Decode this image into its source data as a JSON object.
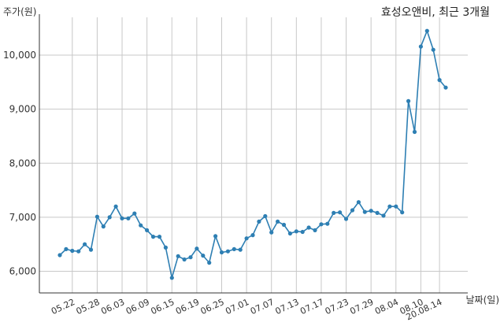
{
  "chart_data": {
    "type": "line",
    "title": "효성오앤비, 최근 3개월",
    "ylabel": "주가(원)",
    "xlabel": "날짜(일)",
    "ylim": [
      5600,
      10700
    ],
    "yticks": [
      6000,
      7000,
      8000,
      9000,
      10000
    ],
    "ytick_labels": [
      "6,000",
      "7,000",
      "8,000",
      "9,000",
      "10,000"
    ],
    "xtick_labels": [
      "05.22",
      "05.28",
      "06.03",
      "06.09",
      "06.15",
      "06.19",
      "06.25",
      "07.01",
      "07.07",
      "07.13",
      "07.17",
      "07.23",
      "07.29",
      "08.04",
      "08.10",
      "20.08.14"
    ],
    "xtick_index": [
      2,
      6,
      10,
      14,
      18,
      22,
      26,
      30,
      34,
      38,
      42,
      46,
      50,
      54,
      58,
      61
    ],
    "grid": true,
    "line_color": "#2e7fb3",
    "series": [
      {
        "values": [
          6300,
          6410,
          6380,
          6370,
          6500,
          6400,
          7010,
          6830,
          7000,
          7200,
          6980,
          6980,
          7070,
          6850,
          6760,
          6640,
          6640,
          6440,
          5880,
          6280,
          6220,
          6260,
          6420,
          6290,
          6160,
          6650,
          6350,
          6370,
          6410,
          6400,
          6610,
          6670,
          6920,
          7020,
          6720,
          6920,
          6860,
          6700,
          6740,
          6730,
          6810,
          6760,
          6870,
          6880,
          7080,
          7090,
          6970,
          7130,
          7280,
          7100,
          7120,
          7080,
          7030,
          7200,
          7200,
          7090,
          9150,
          8580,
          10160,
          10450,
          10100,
          9540,
          9400
        ]
      }
    ]
  }
}
